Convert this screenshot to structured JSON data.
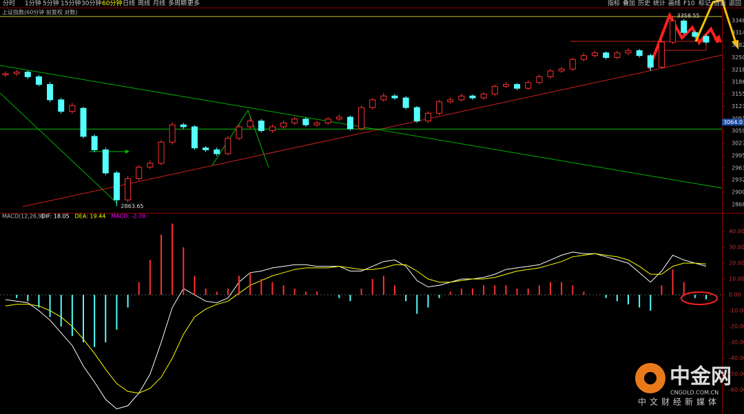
{
  "toolbar": {
    "left": [
      "分时",
      "1分钟",
      "5分钟",
      "15分钟",
      "30分钟",
      "60分钟",
      "日线",
      "周线",
      "月线",
      "多周期",
      "更多"
    ],
    "selected_index": 5,
    "right": [
      "指标",
      "叠加",
      "历史",
      "统计",
      "画线",
      "F10",
      "标记",
      "自选",
      "返回"
    ]
  },
  "watermark": {
    "brand": "中金网",
    "domain": "CNGOLD.COM.CN",
    "slogan": "中文财经新媒体"
  },
  "chart_data": [
    {
      "type": "candlestick",
      "title": "上证指数(60分钟 前复权 对数)",
      "up_color": "#ff3232",
      "down_color": "#54ffff",
      "open": [
        3205,
        3208,
        3212,
        3200,
        3180,
        3140,
        3110,
        3118,
        3045,
        3010,
        2950,
        2880,
        2935,
        2965,
        2975,
        3030,
        3075,
        3070,
        3015,
        3010,
        3000,
        3040,
        3070,
        3085,
        3060,
        3070,
        3080,
        3090,
        3075,
        3080,
        3090,
        3095,
        3065,
        3120,
        3140,
        3150,
        3145,
        3120,
        3085,
        3105,
        3135,
        3140,
        3150,
        3145,
        3155,
        3175,
        3180,
        3170,
        3185,
        3200,
        3215,
        3220,
        3245,
        3255,
        3262,
        3250,
        3262,
        3268,
        3255,
        3225,
        3290,
        3345,
        3315,
        3305
      ],
      "high": [
        3214,
        3218,
        3216,
        3205,
        3186,
        3145,
        3132,
        3122,
        3050,
        3016,
        2955,
        2942,
        2970,
        2982,
        3036,
        3082,
        3080,
        3074,
        3020,
        3016,
        3046,
        3076,
        3094,
        3090,
        3076,
        3086,
        3096,
        3094,
        3086,
        3095,
        3102,
        3099,
        3126,
        3145,
        3158,
        3155,
        3150,
        3124,
        3110,
        3140,
        3146,
        3156,
        3154,
        3160,
        3180,
        3186,
        3184,
        3190,
        3206,
        3220,
        3226,
        3250,
        3262,
        3268,
        3266,
        3268,
        3274,
        3272,
        3260,
        3296,
        3358.55,
        3350,
        3320,
        3310
      ],
      "low": [
        3199,
        3202,
        3194,
        3175,
        3134,
        3104,
        3104,
        3040,
        3004,
        2944,
        2863.65,
        2874,
        2930,
        2960,
        2970,
        3024,
        3064,
        3010,
        3004,
        2994,
        2996,
        3035,
        3064,
        3055,
        3054,
        3065,
        3075,
        3070,
        3070,
        3075,
        3085,
        3060,
        3060,
        3115,
        3135,
        3140,
        3115,
        3080,
        3080,
        3100,
        3130,
        3135,
        3140,
        3140,
        3150,
        3170,
        3165,
        3165,
        3180,
        3195,
        3210,
        3215,
        3240,
        3250,
        3245,
        3245,
        3256,
        3250,
        3215,
        3220,
        3285,
        3310,
        3300,
        3284
      ],
      "close": [
        3208,
        3212,
        3200,
        3180,
        3140,
        3110,
        3125,
        3045,
        3010,
        2950,
        2880,
        2935,
        2965,
        2975,
        3030,
        3075,
        3070,
        3015,
        3010,
        3000,
        3040,
        3070,
        3085,
        3060,
        3070,
        3080,
        3090,
        3075,
        3080,
        3090,
        3095,
        3065,
        3120,
        3140,
        3150,
        3145,
        3120,
        3085,
        3105,
        3135,
        3140,
        3150,
        3145,
        3155,
        3175,
        3180,
        3170,
        3185,
        3200,
        3215,
        3220,
        3245,
        3255,
        3262,
        3250,
        3262,
        3268,
        3255,
        3225,
        3290,
        3345,
        3315,
        3305,
        3290
      ],
      "ylim": [
        2848,
        3378
      ],
      "yticks": [
        3346,
        3314,
        3282,
        3250,
        3218,
        3186,
        3155,
        3123,
        3091,
        3059,
        3027,
        2995,
        2963,
        2932,
        2900,
        2868
      ],
      "annotations": [
        {
          "index": 60,
          "value": 3358.55,
          "label": "3358.55"
        },
        {
          "index": 10,
          "value": 2863.65,
          "label": "2863.65"
        }
      ],
      "price_line": {
        "value": 3064,
        "label": "3064.0",
        "color": "#00c000"
      }
    },
    {
      "type": "macd",
      "title": "MACD(12,26,9)",
      "series": [
        {
          "label": "DIF: 18.05",
          "color": "#ffffff",
          "values": [
            -3,
            -4,
            -5,
            -10,
            -16,
            -24,
            -32,
            -45,
            -55,
            -66,
            -72,
            -70,
            -62,
            -50,
            -30,
            -8,
            4,
            0,
            -4,
            -5,
            -2,
            8,
            14,
            15,
            17,
            18,
            19,
            19,
            18,
            18,
            18,
            15,
            15,
            18,
            21,
            22,
            18,
            9,
            5,
            6,
            8,
            10,
            10,
            11,
            13,
            16,
            17,
            18,
            19,
            22,
            25,
            27,
            26,
            26,
            24,
            22,
            20,
            14,
            8,
            15,
            25,
            22,
            20,
            18.05
          ]
        },
        {
          "label": "DEA: 19.44",
          "color": "#ffff00",
          "values": [
            -7,
            -6,
            -6,
            -7,
            -10,
            -14,
            -20,
            -28,
            -37,
            -47,
            -56,
            -61,
            -62,
            -59,
            -52,
            -40,
            -25,
            -14,
            -9,
            -6,
            -4,
            1,
            6,
            9,
            12,
            14,
            16,
            17,
            17,
            17,
            18,
            17,
            16,
            16,
            17,
            19,
            19,
            15,
            10,
            8,
            8,
            9,
            10,
            10,
            11,
            13,
            15,
            16,
            17,
            19,
            21,
            24,
            25,
            26,
            25,
            24,
            22,
            18,
            13,
            13,
            18,
            20,
            20,
            19.44
          ]
        },
        {
          "label": "MACD: -2.78",
          "color": "#ff00ff",
          "up_color": "#ff3232",
          "down_color": "#54ffff",
          "values": [
            0,
            -2,
            -4,
            -8,
            -14,
            -20,
            -26,
            -30,
            -33,
            -30,
            -22,
            -8,
            8,
            22,
            38,
            45,
            30,
            12,
            4,
            2,
            4,
            12,
            14,
            10,
            8,
            6,
            4,
            2,
            2,
            0,
            -2,
            -4,
            4,
            10,
            12,
            6,
            -4,
            -12,
            -8,
            -2,
            2,
            4,
            4,
            6,
            6,
            6,
            4,
            4,
            6,
            8,
            8,
            6,
            2,
            0,
            -2,
            -4,
            -6,
            -8,
            -10,
            6,
            16,
            8,
            -2,
            -2.78
          ]
        }
      ],
      "ylim": [
        -75.2,
        51.3
      ],
      "yticks": [
        {
          "value": 40,
          "label": "40.00"
        },
        {
          "value": 30,
          "label": "30.00"
        },
        {
          "value": 20,
          "label": "20.00"
        },
        {
          "value": 10,
          "label": "10.00"
        },
        {
          "value": 0,
          "label": "0.00"
        },
        {
          "value": -10,
          "label": "-10.00"
        },
        {
          "value": -20,
          "label": "-20.00"
        },
        {
          "value": -30,
          "label": "-30.00"
        },
        {
          "value": -40,
          "label": "-40.00"
        },
        {
          "value": -50,
          "label": "-50.00"
        },
        {
          "value": -60,
          "label": "-60.00"
        }
      ]
    }
  ]
}
